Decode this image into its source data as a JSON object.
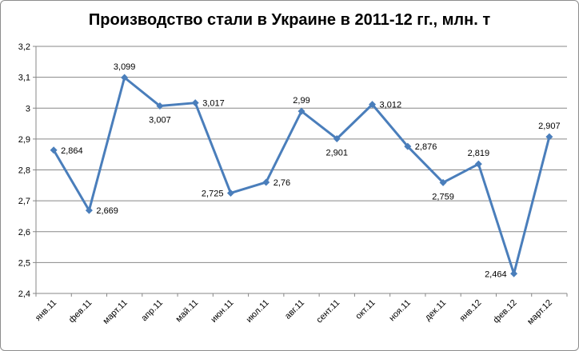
{
  "chart_data": {
    "type": "line",
    "title": "Производство стали в Украине в 2011-12 гг., млн. т",
    "categories": [
      "янв.11",
      "фев.11",
      "март.11",
      "апр.11",
      "май.11",
      "июн.11",
      "июл.11",
      "авг.11",
      "сент.11",
      "окт.11",
      "ноя.11",
      "дек.11",
      "янв.12",
      "фев.12",
      "март.12"
    ],
    "series": [
      {
        "values": [
          2.864,
          2.669,
          3.099,
          3.007,
          3.017,
          2.725,
          2.76,
          2.99,
          2.901,
          3.012,
          2.876,
          2.759,
          2.819,
          2.464,
          2.907
        ],
        "labels": [
          "2,864",
          "2,669",
          "3,099",
          "3,007",
          "3,017",
          "2,725",
          "2,76",
          "2,99",
          "2,901",
          "3,012",
          "2,876",
          "2,759",
          "2,819",
          "2,464",
          "2,907"
        ],
        "color": "#4a7ebb"
      }
    ],
    "ylim": [
      2.4,
      3.2
    ],
    "yticks": [
      2.4,
      2.5,
      2.6,
      2.7,
      2.8,
      2.9,
      3.0,
      3.1,
      3.2
    ],
    "ytick_labels": [
      "2,4",
      "2,5",
      "2,6",
      "2,7",
      "2,8",
      "2,9",
      "3",
      "3,1",
      "3,2"
    ],
    "grid": true,
    "gridline_color": "#878787",
    "xlabel": "",
    "ylabel": ""
  }
}
